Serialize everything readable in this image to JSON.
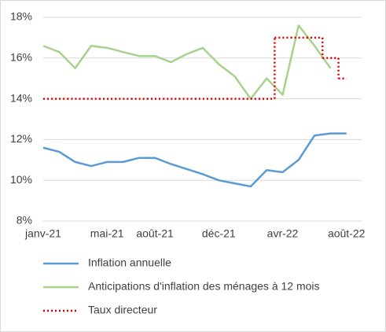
{
  "chart_data": {
    "type": "line",
    "categories": [
      "janv-21",
      null,
      null,
      null,
      "mai-21",
      null,
      null,
      "août-21",
      null,
      null,
      null,
      "déc-21",
      null,
      null,
      null,
      "avr-22",
      null,
      null,
      null,
      "août-22"
    ],
    "series": [
      {
        "name": "Inflation annuelle",
        "color": "#5b9bd5",
        "values": [
          11.6,
          11.4,
          10.9,
          10.7,
          10.9,
          10.9,
          11.1,
          11.1,
          10.8,
          10.55,
          10.3,
          10.0,
          9.85,
          9.7,
          10.5,
          10.4,
          11.0,
          12.2,
          12.3,
          12.3
        ]
      },
      {
        "name": "Anticipations d'inflation des ménages à 12 mois",
        "color": "#a9d18e",
        "values": [
          16.6,
          16.3,
          15.5,
          16.6,
          16.5,
          16.3,
          16.1,
          16.1,
          15.8,
          16.2,
          16.5,
          15.7,
          15.1,
          14.0,
          15.0,
          14.2,
          17.6,
          16.6,
          15.5,
          null
        ]
      },
      {
        "name": "Taux directeur",
        "color": "#e00000",
        "step": true,
        "dash": true,
        "values": [
          14,
          14,
          14,
          14,
          14,
          14,
          14,
          14,
          14,
          14,
          14,
          14,
          14,
          14,
          14,
          17,
          17,
          17,
          16,
          15
        ]
      }
    ],
    "ylim": [
      8,
      18
    ],
    "yticks": [
      {
        "value": 8,
        "label": "8%"
      },
      {
        "value": 10,
        "label": "10%"
      },
      {
        "value": 12,
        "label": "12%"
      },
      {
        "value": 14,
        "label": "14%"
      },
      {
        "value": 16,
        "label": "16%"
      },
      {
        "value": 18,
        "label": "18%"
      }
    ],
    "grid": true
  }
}
